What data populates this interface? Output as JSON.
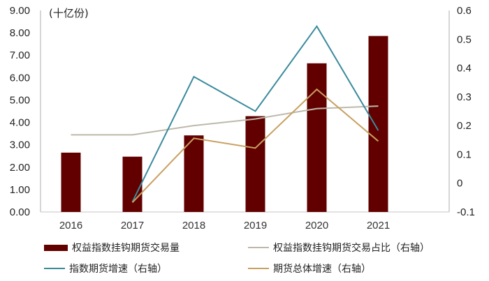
{
  "chart_data": {
    "type": "bar+line",
    "title": "",
    "unit_label": "(十亿份)",
    "categories": [
      "2016",
      "2017",
      "2018",
      "2019",
      "2020",
      "2021"
    ],
    "left_axis": {
      "ticks": [
        "0.00",
        "1.00",
        "2.00",
        "3.00",
        "4.00",
        "5.00",
        "6.00",
        "7.00",
        "8.00",
        "9.00"
      ],
      "range": [
        0,
        9
      ]
    },
    "right_axis": {
      "ticks": [
        "-0.1",
        "0",
        "0.1",
        "0.2",
        "0.3",
        "0.4",
        "0.5",
        "0.6"
      ],
      "range": [
        -0.1,
        0.6
      ]
    },
    "series": [
      {
        "name": "权益指数挂钩期货交易量",
        "type": "bar",
        "axis": "left",
        "color": "#620000",
        "values": [
          2.65,
          2.47,
          3.42,
          4.28,
          6.64,
          7.86
        ]
      },
      {
        "name": "权益指数挂钩期货交易占比（右轴）",
        "type": "line",
        "axis": "right",
        "color": "#bdb9aa",
        "values": [
          0.168,
          0.168,
          0.2,
          0.223,
          0.259,
          0.268
        ]
      },
      {
        "name": "指数期货增速（右轴）",
        "type": "line",
        "axis": "right",
        "color": "#3a8a9c",
        "values": [
          null,
          -0.065,
          0.37,
          0.25,
          0.545,
          0.183
        ]
      },
      {
        "name": "期货总体增速（右轴）",
        "type": "line",
        "axis": "right",
        "color": "#c8a060",
        "values": [
          null,
          -0.067,
          0.156,
          0.122,
          0.326,
          0.146
        ]
      }
    ],
    "grid": false,
    "legend_position": "bottom"
  },
  "legend": [
    {
      "label": "权益指数挂钩期货交易量"
    },
    {
      "label": "权益指数挂钩期货交易占比（右轴）"
    },
    {
      "label": "指数期货增速（右轴）"
    },
    {
      "label": "期货总体增速（右轴）"
    }
  ]
}
